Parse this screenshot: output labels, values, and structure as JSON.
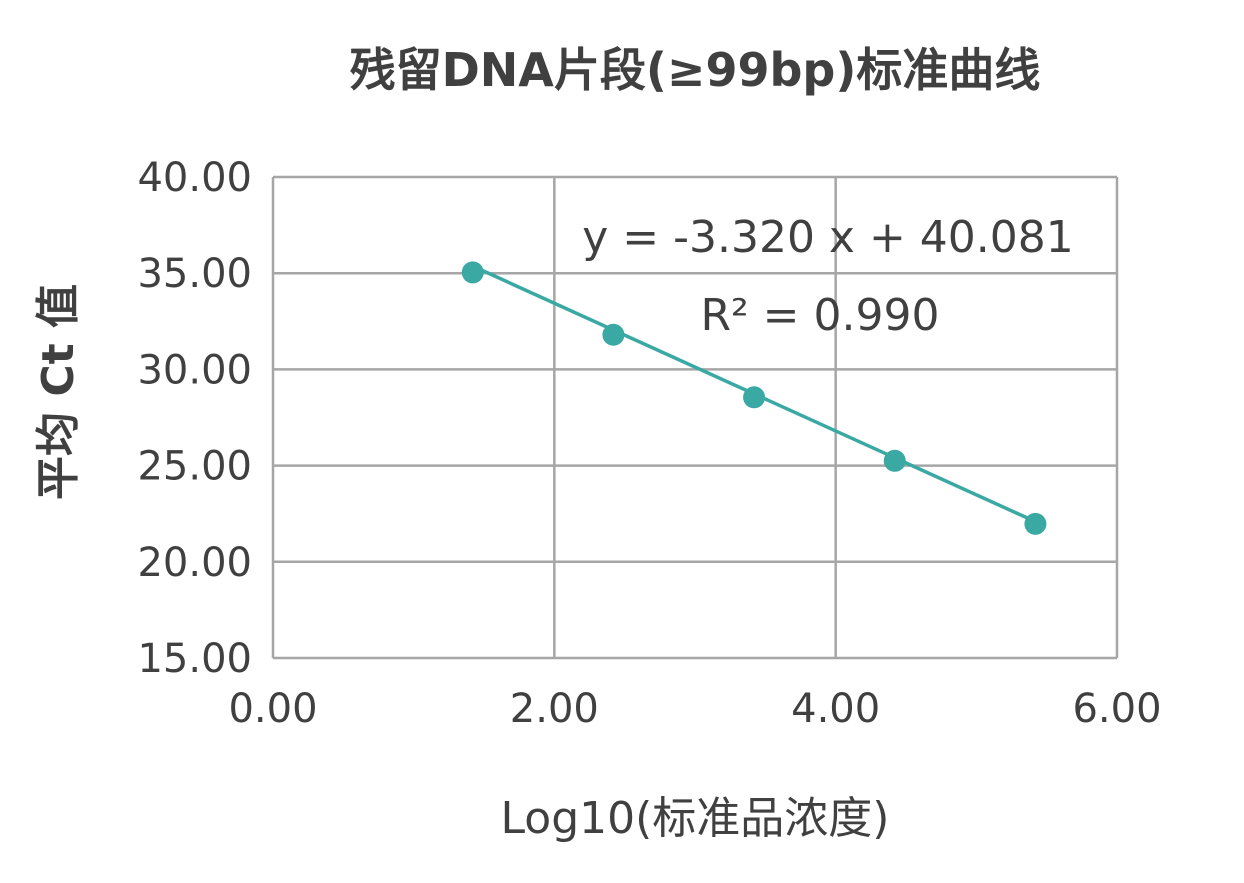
{
  "chart_data": {
    "type": "scatter",
    "title": "残留DNA片段(≥99bp)标准曲线",
    "xlabel": "Log10(标准品浓度)",
    "ylabel": "平均 Ct 值",
    "xlim": [
      0,
      6
    ],
    "ylim": [
      15,
      40
    ],
    "x_ticks": [
      "0.00",
      "2.00",
      "4.00",
      "6.00"
    ],
    "y_ticks": [
      "15.00",
      "20.00",
      "25.00",
      "30.00",
      "35.00",
      "40.00"
    ],
    "grid": true,
    "series": [
      {
        "points": [
          {
            "x": 1.42,
            "y": 35.04
          },
          {
            "x": 2.42,
            "y": 31.8
          },
          {
            "x": 3.42,
            "y": 28.55
          },
          {
            "x": 4.42,
            "y": 25.25
          },
          {
            "x": 5.42,
            "y": 21.97
          }
        ],
        "color": "#3aa8a3"
      }
    ],
    "trendline": {
      "slope": -3.32,
      "intercept": 40.081,
      "x_range": [
        1.42,
        5.42
      ],
      "color": "#3aa8a3",
      "equation_label": "y = -3.320 x  + 40.081",
      "r2_label": "R² = 0.990"
    }
  }
}
